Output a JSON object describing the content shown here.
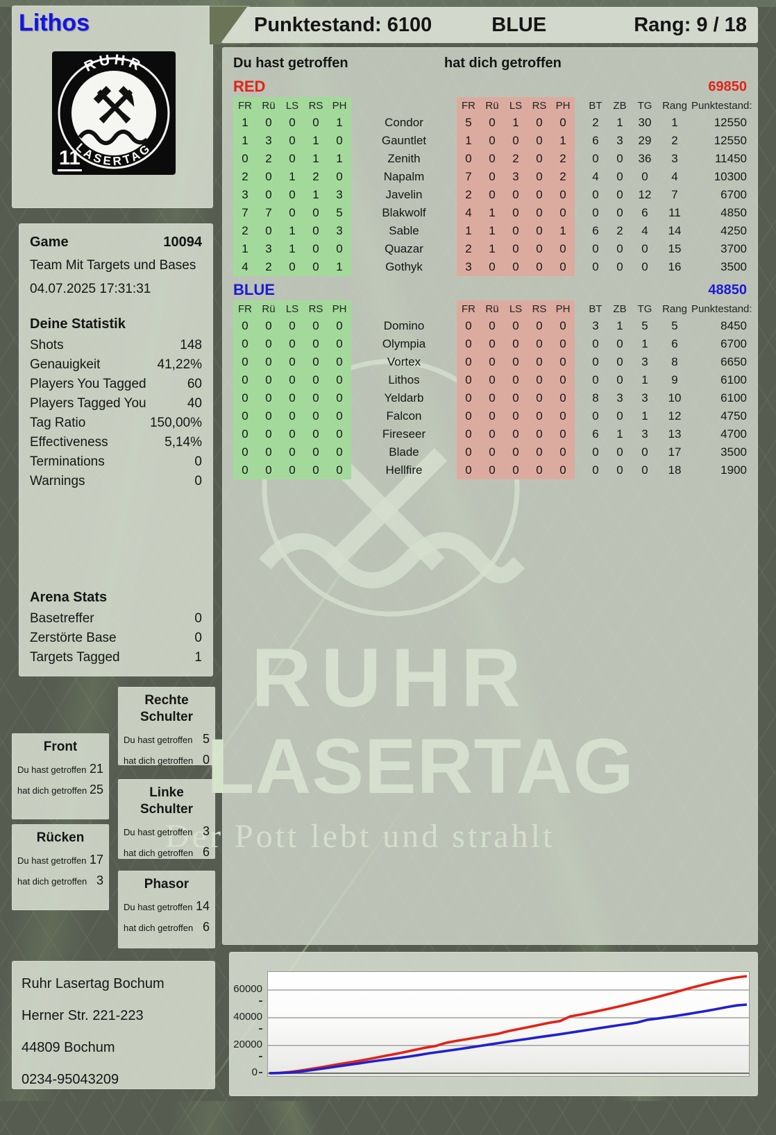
{
  "watermark": {
    "word1": "RUHR",
    "word2": "LASERTAG",
    "tagline": "Der Pott lebt und strahlt"
  },
  "logo": {
    "arc_top": "RUHR",
    "arc_bottom": "LASERTAG",
    "badge_number": "11",
    "hammers_glyph": "⚒"
  },
  "player": {
    "name": "Lithos"
  },
  "topbar": {
    "punktestand": "Punktestand: 6100",
    "team": "BLUE",
    "rang": "Rang: 9 / 18"
  },
  "game": {
    "label": "Game",
    "number": "10094",
    "mode": "Team Mit Targets und Bases",
    "datetime": "04.07.2025 17:31:31",
    "stats_title": "Deine Statistik",
    "stats": [
      {
        "label": "Shots",
        "value": "148"
      },
      {
        "label": "Genauigkeit",
        "value": "41,22%"
      },
      {
        "label": "Players You Tagged",
        "value": "60"
      },
      {
        "label": "Players Tagged You",
        "value": "40"
      },
      {
        "label": "Tag Ratio",
        "value": "150,00%"
      },
      {
        "label": "Effectiveness",
        "value": "5,14%"
      },
      {
        "label": "Terminations",
        "value": "0"
      },
      {
        "label": "Warnings",
        "value": "0"
      }
    ],
    "arena_title": "Arena Stats",
    "arena_stats": [
      {
        "label": "Basetreffer",
        "value": "0"
      },
      {
        "label": "Zerstörte Base",
        "value": "0"
      },
      {
        "label": "Targets Tagged",
        "value": "1"
      }
    ]
  },
  "hit_labels": {
    "you": "Du hast getroffen",
    "them": "hat dich getroffen"
  },
  "hit_zones": [
    {
      "id": "front",
      "title": "Front",
      "you": "21",
      "them": "25"
    },
    {
      "id": "ruecken",
      "title": "Rücken",
      "you": "17",
      "them": "3"
    },
    {
      "id": "rechte",
      "title": "Rechte Schulter",
      "you": "5",
      "them": "0"
    },
    {
      "id": "linke",
      "title": "Linke Schulter",
      "you": "3",
      "them": "6"
    },
    {
      "id": "phasor",
      "title": "Phasor",
      "you": "14",
      "them": "6"
    }
  ],
  "scoreboard": {
    "you_label": "Du hast getroffen",
    "them_label": "hat dich getroffen",
    "zone_cols": [
      "FR",
      "Rü",
      "LS",
      "RS",
      "PH"
    ],
    "stat_cols": [
      "BT",
      "ZB",
      "TG",
      "Rang",
      "Punktestand:"
    ],
    "colors": {
      "green_cell": "#a3da9c",
      "red_cell": "#dcab9f",
      "red_team": "#e1231a",
      "blue_team": "#1b1bd6"
    },
    "teams": [
      {
        "name": "RED",
        "total": "69850",
        "color_key": "red",
        "rows": [
          {
            "name": "Condor",
            "you": [
              "1",
              "0",
              "0",
              "0",
              "1"
            ],
            "them": [
              "5",
              "0",
              "1",
              "0",
              "0"
            ],
            "stats": [
              "2",
              "1",
              "30",
              "1",
              "12550"
            ]
          },
          {
            "name": "Gauntlet",
            "you": [
              "1",
              "3",
              "0",
              "1",
              "0"
            ],
            "them": [
              "1",
              "0",
              "0",
              "0",
              "1"
            ],
            "stats": [
              "6",
              "3",
              "29",
              "2",
              "12550"
            ]
          },
          {
            "name": "Zenith",
            "you": [
              "0",
              "2",
              "0",
              "1",
              "1"
            ],
            "them": [
              "0",
              "0",
              "2",
              "0",
              "2"
            ],
            "stats": [
              "0",
              "0",
              "36",
              "3",
              "11450"
            ]
          },
          {
            "name": "Napalm",
            "you": [
              "2",
              "0",
              "1",
              "2",
              "0"
            ],
            "them": [
              "7",
              "0",
              "3",
              "0",
              "2"
            ],
            "stats": [
              "4",
              "0",
              "0",
              "4",
              "10300"
            ]
          },
          {
            "name": "Javelin",
            "you": [
              "3",
              "0",
              "0",
              "1",
              "3"
            ],
            "them": [
              "2",
              "0",
              "0",
              "0",
              "0"
            ],
            "stats": [
              "0",
              "0",
              "12",
              "7",
              "6700"
            ]
          },
          {
            "name": "Blakwolf",
            "you": [
              "7",
              "7",
              "0",
              "0",
              "5"
            ],
            "them": [
              "4",
              "1",
              "0",
              "0",
              "0"
            ],
            "stats": [
              "0",
              "0",
              "6",
              "11",
              "4850"
            ]
          },
          {
            "name": "Sable",
            "you": [
              "2",
              "0",
              "1",
              "0",
              "3"
            ],
            "them": [
              "1",
              "1",
              "0",
              "0",
              "1"
            ],
            "stats": [
              "6",
              "2",
              "4",
              "14",
              "4250"
            ]
          },
          {
            "name": "Quazar",
            "you": [
              "1",
              "3",
              "1",
              "0",
              "0"
            ],
            "them": [
              "2",
              "1",
              "0",
              "0",
              "0"
            ],
            "stats": [
              "0",
              "0",
              "0",
              "15",
              "3700"
            ]
          },
          {
            "name": "Gothyk",
            "you": [
              "4",
              "2",
              "0",
              "0",
              "1"
            ],
            "them": [
              "3",
              "0",
              "0",
              "0",
              "0"
            ],
            "stats": [
              "0",
              "0",
              "0",
              "16",
              "3500"
            ]
          }
        ]
      },
      {
        "name": "BLUE",
        "total": "48850",
        "color_key": "blue",
        "rows": [
          {
            "name": "Domino",
            "you": [
              "0",
              "0",
              "0",
              "0",
              "0"
            ],
            "them": [
              "0",
              "0",
              "0",
              "0",
              "0"
            ],
            "stats": [
              "3",
              "1",
              "5",
              "5",
              "8450"
            ]
          },
          {
            "name": "Olympia",
            "you": [
              "0",
              "0",
              "0",
              "0",
              "0"
            ],
            "them": [
              "0",
              "0",
              "0",
              "0",
              "0"
            ],
            "stats": [
              "0",
              "0",
              "1",
              "6",
              "6700"
            ]
          },
          {
            "name": "Vortex",
            "you": [
              "0",
              "0",
              "0",
              "0",
              "0"
            ],
            "them": [
              "0",
              "0",
              "0",
              "0",
              "0"
            ],
            "stats": [
              "0",
              "0",
              "3",
              "8",
              "6650"
            ]
          },
          {
            "name": "Lithos",
            "you": [
              "0",
              "0",
              "0",
              "0",
              "0"
            ],
            "them": [
              "0",
              "0",
              "0",
              "0",
              "0"
            ],
            "stats": [
              "0",
              "0",
              "1",
              "9",
              "6100"
            ]
          },
          {
            "name": "Yeldarb",
            "you": [
              "0",
              "0",
              "0",
              "0",
              "0"
            ],
            "them": [
              "0",
              "0",
              "0",
              "0",
              "0"
            ],
            "stats": [
              "8",
              "3",
              "3",
              "10",
              "6100"
            ]
          },
          {
            "name": "Falcon",
            "you": [
              "0",
              "0",
              "0",
              "0",
              "0"
            ],
            "them": [
              "0",
              "0",
              "0",
              "0",
              "0"
            ],
            "stats": [
              "0",
              "0",
              "1",
              "12",
              "4750"
            ]
          },
          {
            "name": "Fireseer",
            "you": [
              "0",
              "0",
              "0",
              "0",
              "0"
            ],
            "them": [
              "0",
              "0",
              "0",
              "0",
              "0"
            ],
            "stats": [
              "6",
              "1",
              "3",
              "13",
              "4700"
            ]
          },
          {
            "name": "Blade",
            "you": [
              "0",
              "0",
              "0",
              "0",
              "0"
            ],
            "them": [
              "0",
              "0",
              "0",
              "0",
              "0"
            ],
            "stats": [
              "0",
              "0",
              "0",
              "17",
              "3500"
            ]
          },
          {
            "name": "Hellfire",
            "you": [
              "0",
              "0",
              "0",
              "0",
              "0"
            ],
            "them": [
              "0",
              "0",
              "0",
              "0",
              "0"
            ],
            "stats": [
              "0",
              "0",
              "0",
              "18",
              "1900"
            ]
          }
        ]
      }
    ]
  },
  "footer": {
    "lines": [
      "Ruhr Lasertag Bochum",
      "Herner Str. 221-223",
      "44809 Bochum",
      "0234-95043209"
    ]
  },
  "chart_data": {
    "type": "line",
    "title": "",
    "xlabel": "",
    "ylabel": "",
    "ylim": [
      0,
      73000
    ],
    "grid": true,
    "legend": "none",
    "yticks": [
      {
        "label": "0",
        "value": 0
      },
      {
        "label": "20000",
        "value": 20000
      },
      {
        "label": "40000",
        "value": 40000
      },
      {
        "label": "60000",
        "value": 60000
      }
    ],
    "series": [
      {
        "name": "RED",
        "color": "#e02318",
        "values": [
          0,
          300,
          900,
          1900,
          3100,
          4300,
          5600,
          6900,
          8100,
          9400,
          10800,
          12300,
          13700,
          15200,
          16800,
          18400,
          19600,
          21900,
          23300,
          24500,
          25800,
          27100,
          28400,
          30300,
          31800,
          33300,
          34900,
          36400,
          37600,
          41000,
          42300,
          43800,
          45400,
          47000,
          48700,
          50500,
          52300,
          54200,
          56200,
          58200,
          60300,
          62300,
          64200,
          66000,
          67700,
          69000,
          70000
        ]
      },
      {
        "name": "BLUE",
        "color": "#2020cf",
        "values": [
          0,
          150,
          500,
          1100,
          2000,
          3000,
          4000,
          5100,
          6100,
          7100,
          8200,
          9200,
          10100,
          11000,
          12000,
          13100,
          14300,
          15300,
          16300,
          17300,
          18400,
          19500,
          20600,
          21700,
          22800,
          23800,
          24800,
          25900,
          26900,
          27900,
          29000,
          30100,
          31200,
          32300,
          33400,
          34500,
          35500,
          36600,
          38500,
          39400,
          40400,
          41500,
          42600,
          43800,
          45000,
          46300,
          47700,
          48900,
          49500
        ]
      }
    ]
  }
}
